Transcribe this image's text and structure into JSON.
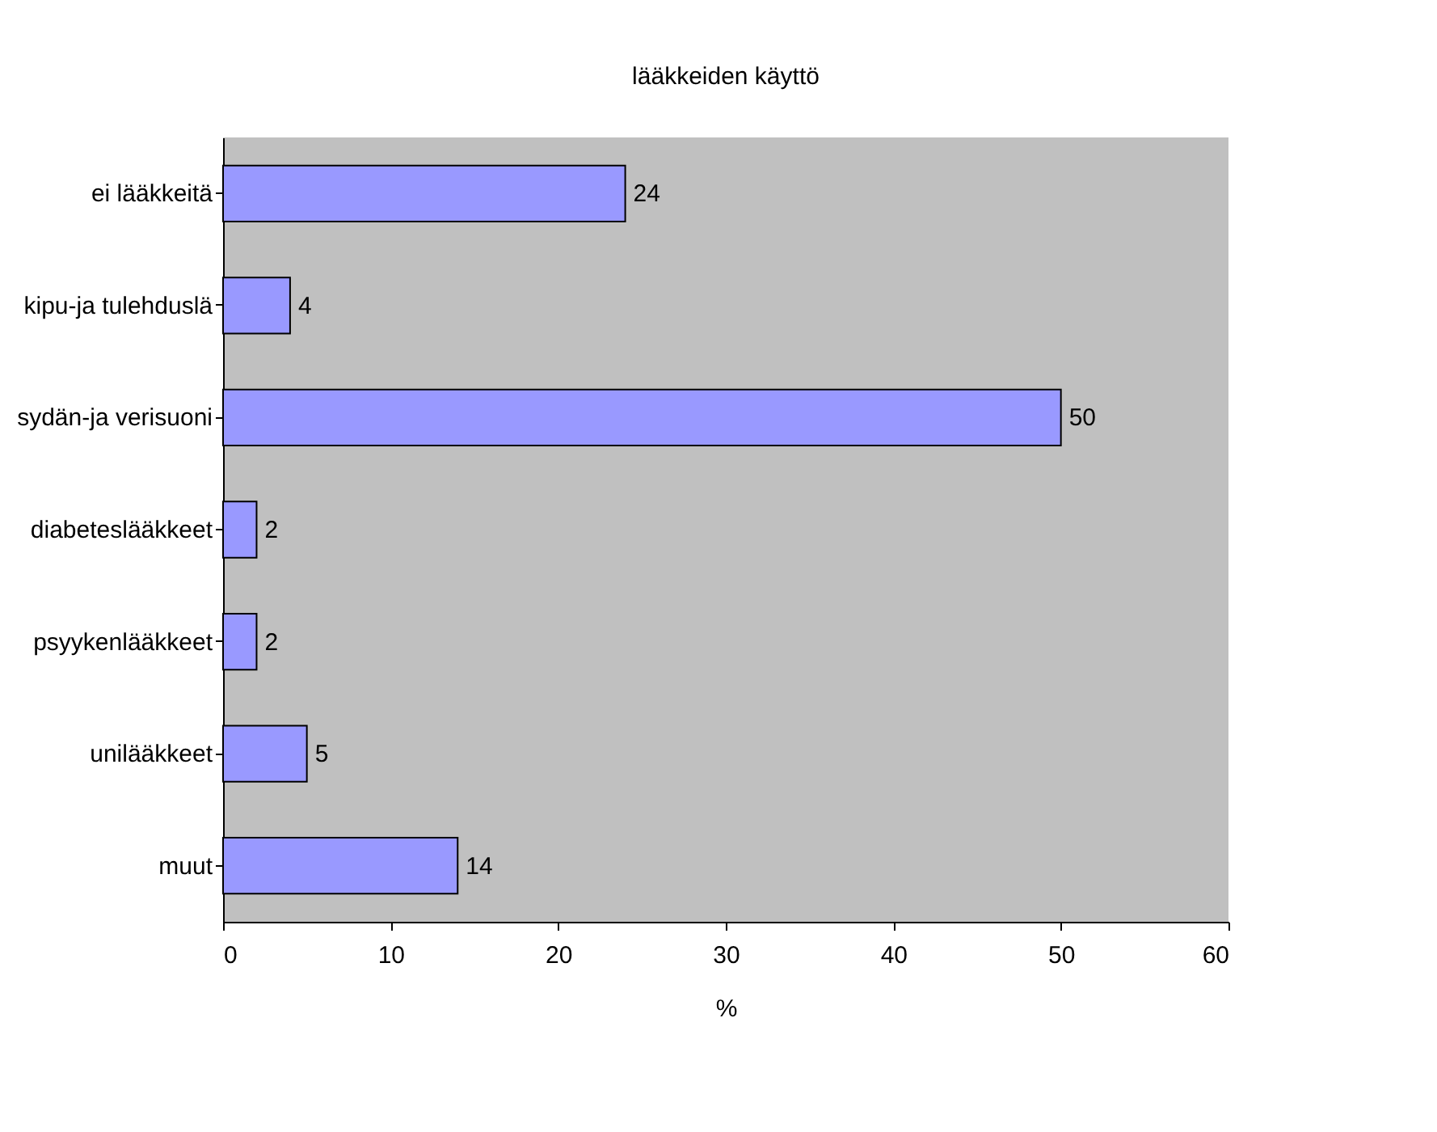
{
  "chart_data": {
    "type": "bar",
    "orientation": "horizontal",
    "title": "lääkkeiden käyttö",
    "xlabel": "%",
    "categories": [
      "ei lääkkeitä",
      "kipu-ja tulehduslä",
      "sydän-ja verisuoni",
      "diabeteslääkkeet",
      "psyykenlääkkeet",
      "unilääkkeet",
      "muut"
    ],
    "values": [
      24,
      4,
      50,
      2,
      2,
      5,
      14
    ],
    "color": "#9999ff",
    "xlim": [
      0,
      60
    ],
    "xticks": [
      0,
      10,
      20,
      30,
      40,
      50,
      60
    ],
    "grid": false,
    "data_labels": true
  }
}
